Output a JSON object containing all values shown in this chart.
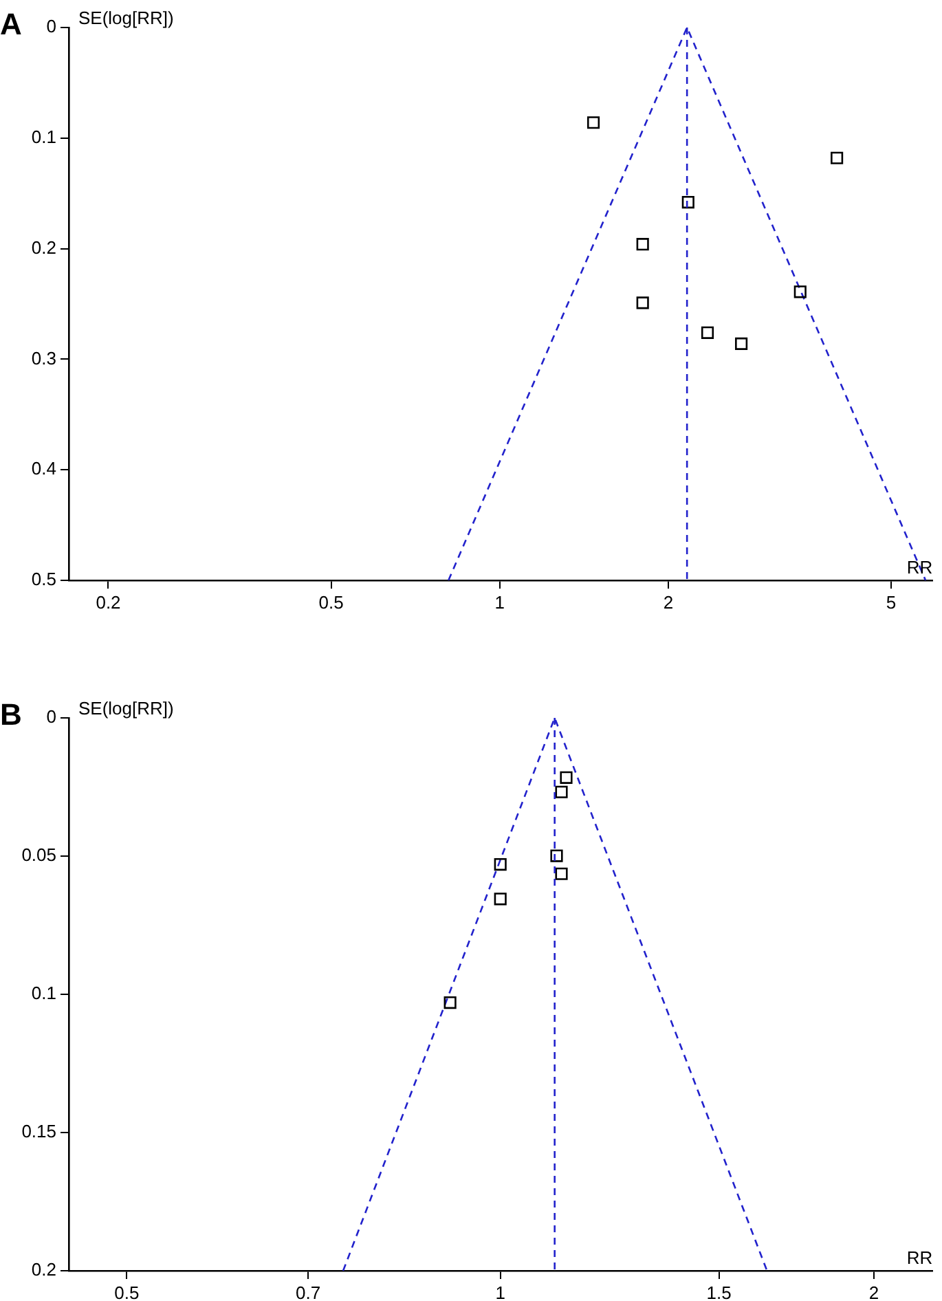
{
  "chart_data": [
    {
      "type": "scatter",
      "title": "A",
      "xlabel": "RR",
      "ylabel": "SE(log[RR])",
      "log": "x",
      "xlim": [
        0.17,
        5.93
      ],
      "xticks": [
        0.2,
        0.5,
        1,
        2,
        5
      ],
      "ylim": [
        0.5,
        0
      ],
      "yticks": [
        0,
        0.1,
        0.2,
        0.3,
        0.4,
        0.5
      ],
      "grid": false,
      "legend": false,
      "marker": "square",
      "series": [
        {
          "type": "scatter",
          "color": "#000000",
          "x": [
            1.47,
            4.0,
            2.17,
            1.8,
            1.8,
            3.44,
            2.35,
            2.7
          ],
          "values": [
            0.086,
            0.118,
            0.158,
            0.196,
            0.249,
            0.239,
            0.276,
            0.286
          ]
        },
        {
          "type": "line",
          "color": "#2222cc",
          "line_style": "dashed",
          "marker": "none",
          "x": [
            0.81,
            2.16,
            5.76
          ],
          "values": [
            0.5,
            0,
            0.5
          ]
        }
      ],
      "ref_lines": [
        {
          "axis": "x",
          "value": 2.16,
          "color": "#2222cc",
          "line_style": "dashed"
        }
      ]
    },
    {
      "type": "scatter",
      "title": "B",
      "xlabel": "RR",
      "ylabel": "SE(log[RR])",
      "log": "x",
      "xlim": [
        0.449,
        2.23
      ],
      "xticks": [
        0.5,
        0.7,
        1,
        1.5,
        2
      ],
      "ylim": [
        0.2,
        0
      ],
      "yticks": [
        0,
        0.05,
        0.1,
        0.15,
        0.2
      ],
      "grid": false,
      "legend": false,
      "marker": "square",
      "series": [
        {
          "type": "scatter",
          "color": "#000000",
          "x": [
            1.13,
            1.12,
            1.11,
            1.12,
            1.0,
            1.0,
            0.911
          ],
          "values": [
            0.0216,
            0.0268,
            0.0499,
            0.0564,
            0.053,
            0.0655,
            0.103
          ]
        },
        {
          "type": "line",
          "color": "#2222cc",
          "line_style": "dashed",
          "marker": "none",
          "x": [
            0.747,
            1.106,
            1.64
          ],
          "values": [
            0.2,
            0,
            0.2
          ]
        }
      ],
      "ref_lines": [
        {
          "axis": "x",
          "value": 1.106,
          "color": "#2222cc",
          "line_style": "dashed"
        }
      ]
    }
  ]
}
